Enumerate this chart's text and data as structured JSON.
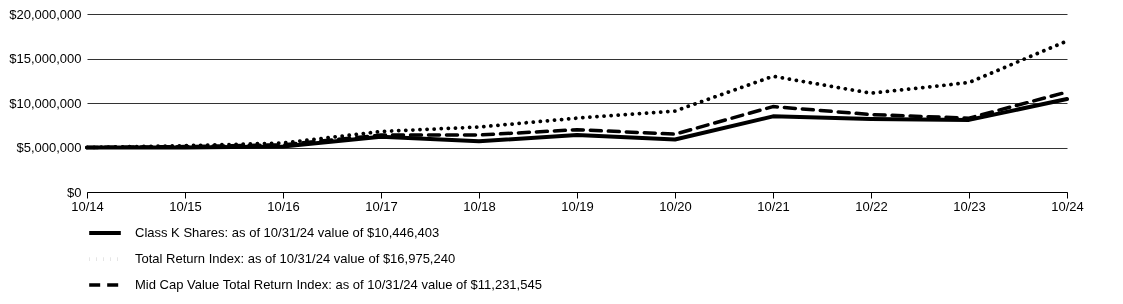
{
  "chart_data": {
    "type": "line",
    "categories": [
      "10/14",
      "10/15",
      "10/16",
      "10/17",
      "10/18",
      "10/19",
      "10/20",
      "10/21",
      "10/22",
      "10/23",
      "10/24"
    ],
    "series": [
      {
        "name": "Class K Shares: as of 10/31/24 value of $10,446,403",
        "color": "#000000",
        "line_style": "solid",
        "values": [
          5000000,
          5000000,
          5100000,
          6200000,
          5700000,
          6400000,
          5900000,
          8500000,
          8200000,
          8100000,
          10446403
        ]
      },
      {
        "name": "Total Return Index: as of 10/31/24 value of $16,975,240",
        "color": "#000000",
        "line_style": "dotted",
        "values": [
          5000000,
          5200000,
          5500000,
          6800000,
          7300000,
          8300000,
          9100000,
          13000000,
          11100000,
          12300000,
          16975240
        ]
      },
      {
        "name": "Mid Cap Value Total Return Index: as of 10/31/24 value of $11,231,545",
        "color": "#000000",
        "line_style": "dashed",
        "values": [
          5000000,
          5100000,
          5300000,
          6400000,
          6400000,
          7000000,
          6500000,
          9600000,
          8700000,
          8300000,
          11231545
        ]
      }
    ],
    "ylim": [
      0,
      20000000
    ],
    "yticks": [
      {
        "value": 0,
        "label": "$0"
      },
      {
        "value": 5000000,
        "label": "$5,000,000"
      },
      {
        "value": 10000000,
        "label": "$10,000,000"
      },
      {
        "value": 15000000,
        "label": "$15,000,000"
      },
      {
        "value": 20000000,
        "label": "$20,000,000"
      }
    ],
    "grid": "y",
    "legend": "bottom",
    "marker": "none"
  }
}
